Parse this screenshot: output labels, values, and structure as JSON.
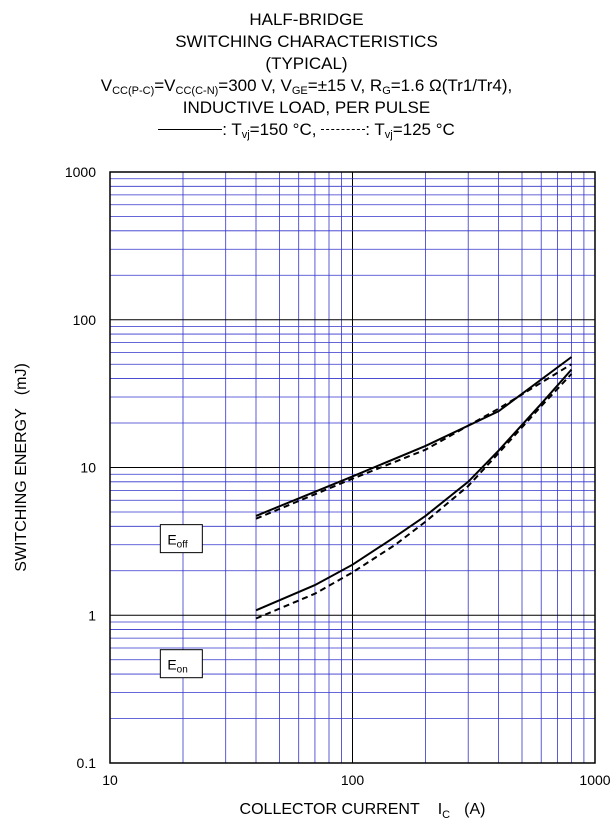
{
  "header": {
    "line1": "HALF-BRIDGE",
    "line2": "SWITCHING CHARACTERISTICS",
    "line3": "(TYPICAL)",
    "cond": {
      "p1": "V",
      "s1": "CC(P-C)",
      "p2": "=V",
      "s2": "CC(C-N)",
      "p3": "=300 V, V",
      "s3": "GE",
      "p4": "=±15 V, R",
      "s4": "G",
      "p5": "=1.6 Ω(Tr1/Tr4),"
    },
    "line5": "INDUCTIVE LOAD, PER PULSE",
    "legend": {
      "solid_text": ": T",
      "solid_sub": "vj",
      "solid_val": "=150 °C,",
      "dashed_text": ": T",
      "dashed_sub": "vj",
      "dashed_val": "=125 °C"
    }
  },
  "chart_data": {
    "type": "line",
    "xscale": "log",
    "yscale": "log",
    "xlim": [
      10,
      1000
    ],
    "ylim": [
      0.1,
      1000
    ],
    "grid": true,
    "line_color": "#000000",
    "grid_color": "#3333cc",
    "xlabel": {
      "main": "COLLECTOR CURRENT",
      "sym": "I",
      "sub": "C",
      "unit": "(A)"
    },
    "ylabel": "SWITCHING ENERGY   (mJ)",
    "xticks": [
      {
        "v": 10,
        "label": "10"
      },
      {
        "v": 100,
        "label": "100"
      },
      {
        "v": 1000,
        "label": "1000"
      }
    ],
    "yticks": [
      {
        "v": 0.1,
        "label": "0.1"
      },
      {
        "v": 1,
        "label": "1"
      },
      {
        "v": 10,
        "label": "10"
      },
      {
        "v": 100,
        "label": "100"
      },
      {
        "v": 1000,
        "label": "1000"
      }
    ],
    "series": [
      {
        "curve": "Eoff",
        "style": "solid",
        "x": [
          40,
          100,
          200,
          400,
          800
        ],
        "y": [
          4.7,
          8.7,
          14,
          24,
          56
        ]
      },
      {
        "curve": "Eoff",
        "style": "dashed",
        "x": [
          40,
          100,
          200,
          400,
          800
        ],
        "y": [
          4.5,
          8.4,
          13.2,
          25,
          50
        ]
      },
      {
        "curve": "Eon",
        "style": "solid",
        "x": [
          40,
          70,
          100,
          150,
          200,
          300,
          400,
          600,
          800
        ],
        "y": [
          1.08,
          1.6,
          2.2,
          3.4,
          4.7,
          8.0,
          13,
          27,
          46
        ]
      },
      {
        "curve": "Eon",
        "style": "dashed",
        "x": [
          40,
          70,
          100,
          150,
          200,
          300,
          400,
          600,
          800
        ],
        "y": [
          0.95,
          1.4,
          1.95,
          3.0,
          4.3,
          7.5,
          12.5,
          26,
          43
        ]
      }
    ],
    "annotations": [
      {
        "id": "eoff",
        "main": "E",
        "sub": "off",
        "x": 19.5,
        "y": 3.3
      },
      {
        "id": "eon",
        "main": "E",
        "sub": "on",
        "x": 19.5,
        "y": 0.47
      }
    ]
  }
}
